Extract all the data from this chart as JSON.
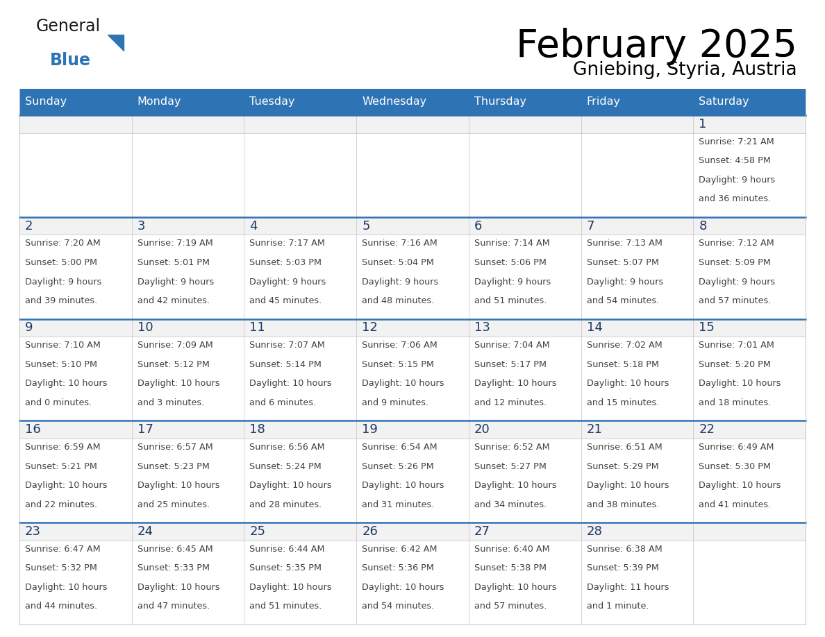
{
  "title": "February 2025",
  "subtitle": "Gniebing, Styria, Austria",
  "header_bg": "#2E74B5",
  "header_text_color": "#FFFFFF",
  "days_of_week": [
    "Sunday",
    "Monday",
    "Tuesday",
    "Wednesday",
    "Thursday",
    "Friday",
    "Saturday"
  ],
  "cell_bg_white": "#FFFFFF",
  "cell_bg_gray": "#F2F2F2",
  "cell_border_blue": "#2E74B5",
  "cell_border_gray": "#C0C0C0",
  "day_number_color": "#1F3864",
  "info_text_color": "#404040",
  "logo_general_color": "#1A1A1A",
  "logo_blue_color": "#2E74B5",
  "calendar_data": [
    [
      null,
      null,
      null,
      null,
      null,
      null,
      {
        "day": 1,
        "sunrise": "7:21 AM",
        "sunset": "4:58 PM",
        "daylight_line1": "Daylight: 9 hours",
        "daylight_line2": "and 36 minutes."
      }
    ],
    [
      {
        "day": 2,
        "sunrise": "7:20 AM",
        "sunset": "5:00 PM",
        "daylight_line1": "Daylight: 9 hours",
        "daylight_line2": "and 39 minutes."
      },
      {
        "day": 3,
        "sunrise": "7:19 AM",
        "sunset": "5:01 PM",
        "daylight_line1": "Daylight: 9 hours",
        "daylight_line2": "and 42 minutes."
      },
      {
        "day": 4,
        "sunrise": "7:17 AM",
        "sunset": "5:03 PM",
        "daylight_line1": "Daylight: 9 hours",
        "daylight_line2": "and 45 minutes."
      },
      {
        "day": 5,
        "sunrise": "7:16 AM",
        "sunset": "5:04 PM",
        "daylight_line1": "Daylight: 9 hours",
        "daylight_line2": "and 48 minutes."
      },
      {
        "day": 6,
        "sunrise": "7:14 AM",
        "sunset": "5:06 PM",
        "daylight_line1": "Daylight: 9 hours",
        "daylight_line2": "and 51 minutes."
      },
      {
        "day": 7,
        "sunrise": "7:13 AM",
        "sunset": "5:07 PM",
        "daylight_line1": "Daylight: 9 hours",
        "daylight_line2": "and 54 minutes."
      },
      {
        "day": 8,
        "sunrise": "7:12 AM",
        "sunset": "5:09 PM",
        "daylight_line1": "Daylight: 9 hours",
        "daylight_line2": "and 57 minutes."
      }
    ],
    [
      {
        "day": 9,
        "sunrise": "7:10 AM",
        "sunset": "5:10 PM",
        "daylight_line1": "Daylight: 10 hours",
        "daylight_line2": "and 0 minutes."
      },
      {
        "day": 10,
        "sunrise": "7:09 AM",
        "sunset": "5:12 PM",
        "daylight_line1": "Daylight: 10 hours",
        "daylight_line2": "and 3 minutes."
      },
      {
        "day": 11,
        "sunrise": "7:07 AM",
        "sunset": "5:14 PM",
        "daylight_line1": "Daylight: 10 hours",
        "daylight_line2": "and 6 minutes."
      },
      {
        "day": 12,
        "sunrise": "7:06 AM",
        "sunset": "5:15 PM",
        "daylight_line1": "Daylight: 10 hours",
        "daylight_line2": "and 9 minutes."
      },
      {
        "day": 13,
        "sunrise": "7:04 AM",
        "sunset": "5:17 PM",
        "daylight_line1": "Daylight: 10 hours",
        "daylight_line2": "and 12 minutes."
      },
      {
        "day": 14,
        "sunrise": "7:02 AM",
        "sunset": "5:18 PM",
        "daylight_line1": "Daylight: 10 hours",
        "daylight_line2": "and 15 minutes."
      },
      {
        "day": 15,
        "sunrise": "7:01 AM",
        "sunset": "5:20 PM",
        "daylight_line1": "Daylight: 10 hours",
        "daylight_line2": "and 18 minutes."
      }
    ],
    [
      {
        "day": 16,
        "sunrise": "6:59 AM",
        "sunset": "5:21 PM",
        "daylight_line1": "Daylight: 10 hours",
        "daylight_line2": "and 22 minutes."
      },
      {
        "day": 17,
        "sunrise": "6:57 AM",
        "sunset": "5:23 PM",
        "daylight_line1": "Daylight: 10 hours",
        "daylight_line2": "and 25 minutes."
      },
      {
        "day": 18,
        "sunrise": "6:56 AM",
        "sunset": "5:24 PM",
        "daylight_line1": "Daylight: 10 hours",
        "daylight_line2": "and 28 minutes."
      },
      {
        "day": 19,
        "sunrise": "6:54 AM",
        "sunset": "5:26 PM",
        "daylight_line1": "Daylight: 10 hours",
        "daylight_line2": "and 31 minutes."
      },
      {
        "day": 20,
        "sunrise": "6:52 AM",
        "sunset": "5:27 PM",
        "daylight_line1": "Daylight: 10 hours",
        "daylight_line2": "and 34 minutes."
      },
      {
        "day": 21,
        "sunrise": "6:51 AM",
        "sunset": "5:29 PM",
        "daylight_line1": "Daylight: 10 hours",
        "daylight_line2": "and 38 minutes."
      },
      {
        "day": 22,
        "sunrise": "6:49 AM",
        "sunset": "5:30 PM",
        "daylight_line1": "Daylight: 10 hours",
        "daylight_line2": "and 41 minutes."
      }
    ],
    [
      {
        "day": 23,
        "sunrise": "6:47 AM",
        "sunset": "5:32 PM",
        "daylight_line1": "Daylight: 10 hours",
        "daylight_line2": "and 44 minutes."
      },
      {
        "day": 24,
        "sunrise": "6:45 AM",
        "sunset": "5:33 PM",
        "daylight_line1": "Daylight: 10 hours",
        "daylight_line2": "and 47 minutes."
      },
      {
        "day": 25,
        "sunrise": "6:44 AM",
        "sunset": "5:35 PM",
        "daylight_line1": "Daylight: 10 hours",
        "daylight_line2": "and 51 minutes."
      },
      {
        "day": 26,
        "sunrise": "6:42 AM",
        "sunset": "5:36 PM",
        "daylight_line1": "Daylight: 10 hours",
        "daylight_line2": "and 54 minutes."
      },
      {
        "day": 27,
        "sunrise": "6:40 AM",
        "sunset": "5:38 PM",
        "daylight_line1": "Daylight: 10 hours",
        "daylight_line2": "and 57 minutes."
      },
      {
        "day": 28,
        "sunrise": "6:38 AM",
        "sunset": "5:39 PM",
        "daylight_line1": "Daylight: 11 hours",
        "daylight_line2": "and 1 minute."
      },
      null
    ]
  ]
}
